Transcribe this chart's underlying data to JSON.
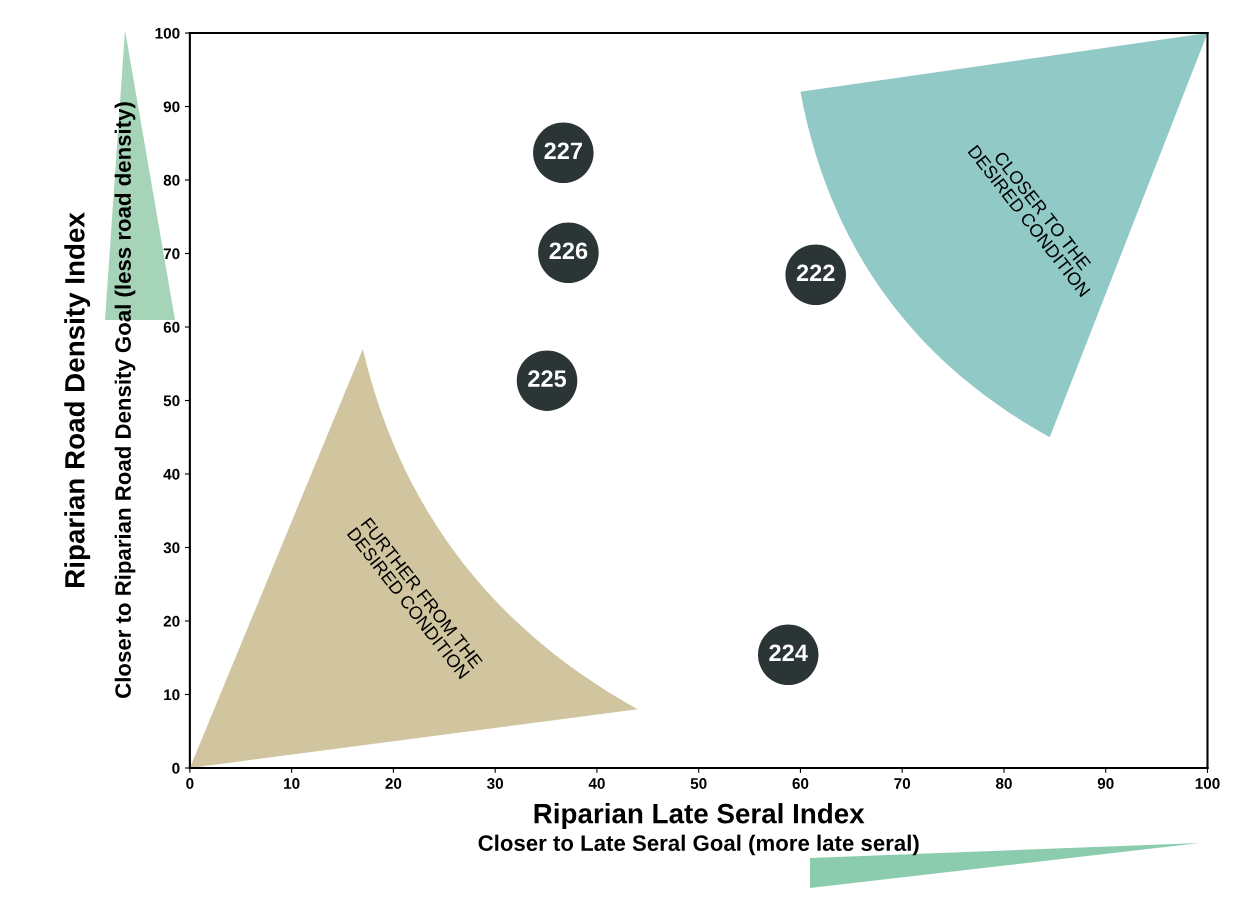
{
  "chart_data": {
    "type": "scatter",
    "xlabel": "Riparian Late Seral Index",
    "ylabel": "Riparian Road Density Index",
    "annotations": [
      "Closer to Late Seral Goal (more late seral)",
      "Closer to Riparian Road Density Goal (less road density)",
      "CLOSER TO THE\nDESIRED CONDITION",
      "FURTHER FROM THE\nDESIRED CONDITION"
    ],
    "series": [
      {
        "name": "227",
        "color": "#2b3535",
        "x": [
          36.7
        ],
        "values": [
          83.7
        ]
      },
      {
        "name": "226",
        "color": "#2b3535",
        "x": [
          37.2
        ],
        "values": [
          70.1
        ]
      },
      {
        "name": "225",
        "color": "#2b3535",
        "x": [
          35.1
        ],
        "values": [
          52.7
        ]
      },
      {
        "name": "222",
        "color": "#2b3535",
        "x": [
          61.5
        ],
        "values": [
          67.1
        ]
      },
      {
        "name": "224",
        "color": "#2b3535",
        "x": [
          58.8
        ],
        "values": [
          15.4
        ]
      }
    ],
    "xlim": [
      0,
      100
    ],
    "ylim": [
      0,
      100
    ],
    "xticks": [
      0,
      10,
      20,
      30,
      40,
      50,
      60,
      70,
      80,
      90,
      100
    ],
    "yticks": [
      0,
      10,
      20,
      30,
      40,
      50,
      60,
      70,
      80,
      90,
      100
    ],
    "grid": false,
    "legend": false,
    "marker": "circle"
  }
}
